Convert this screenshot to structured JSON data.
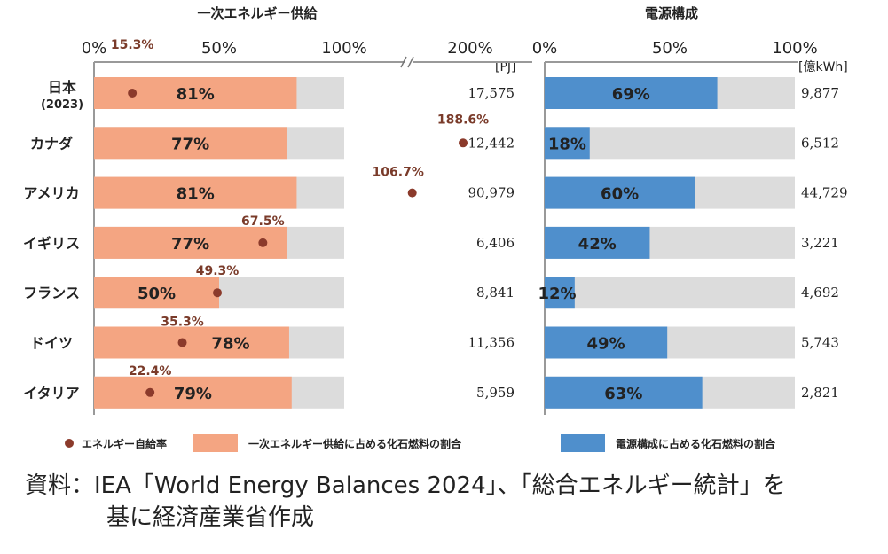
{
  "left_title": "一次エネルギー供給",
  "right_title": "電源構成",
  "left_ticks": [
    "0%",
    "50%",
    "100%",
    "200%"
  ],
  "right_ticks": [
    "0%",
    "50%",
    "100%"
  ],
  "left_unit": "[PJ]",
  "right_unit": "[億kWh]",
  "legend": {
    "self_sufficiency": "エネルギー自給率",
    "primary_fossil": "一次エネルギー供給に占める化石燃料の割合",
    "power_fossil": "電源構成に占める化石燃料の割合"
  },
  "colors": {
    "primary": "#F4A582",
    "power": "#4F8FCC",
    "background_bar": "#DCDCDC",
    "dot": "#8B3A2B",
    "ss_label": "#7A3B2A"
  },
  "source": {
    "line1": "資料：IEA「World Energy Balances 2024」、「総合エネルギー統計」を",
    "line2": "基に経済産業省作成"
  },
  "chart_data": [
    {
      "type": "bar",
      "title": "一次エネルギー供給",
      "categories": [
        "日本",
        "カナダ",
        "アメリカ",
        "イギリス",
        "フランス",
        "ドイツ",
        "イタリア"
      ],
      "category_note": {
        "日本": "(2023)"
      },
      "series": [
        {
          "name": "一次エネルギー供給に占める化石燃料の割合",
          "values": [
            81,
            77,
            81,
            77,
            50,
            78,
            79
          ],
          "labels": [
            "81%",
            "77%",
            "81%",
            "77%",
            "50%",
            "78%",
            "79%"
          ]
        },
        {
          "name": "エネルギー自給率",
          "values": [
            15.3,
            188.6,
            106.7,
            67.5,
            49.3,
            35.3,
            22.4
          ],
          "labels": [
            "15.3%",
            "188.6%",
            "106.7%",
            "67.5%",
            "49.3%",
            "35.3%",
            "22.4%"
          ]
        }
      ],
      "totals": [
        "17,575",
        "12,442",
        "90,979",
        "6,406",
        "8,841",
        "11,356",
        "5,959"
      ],
      "total_unit": "[PJ]",
      "xlim": [
        0,
        200
      ],
      "axis_break": [
        100,
        200
      ]
    },
    {
      "type": "bar",
      "title": "電源構成",
      "categories": [
        "日本",
        "カナダ",
        "アメリカ",
        "イギリス",
        "フランス",
        "ドイツ",
        "イタリア"
      ],
      "series": [
        {
          "name": "電源構成に占める化石燃料の割合",
          "values": [
            69,
            18,
            60,
            42,
            12,
            49,
            63
          ],
          "labels": [
            "69%",
            "18%",
            "60%",
            "42%",
            "12%",
            "49%",
            "63%"
          ]
        }
      ],
      "totals": [
        "9,877",
        "6,512",
        "44,729",
        "3,221",
        "4,692",
        "5,743",
        "2,821"
      ],
      "total_unit": "[億kWh]",
      "xlim": [
        0,
        100
      ]
    }
  ]
}
